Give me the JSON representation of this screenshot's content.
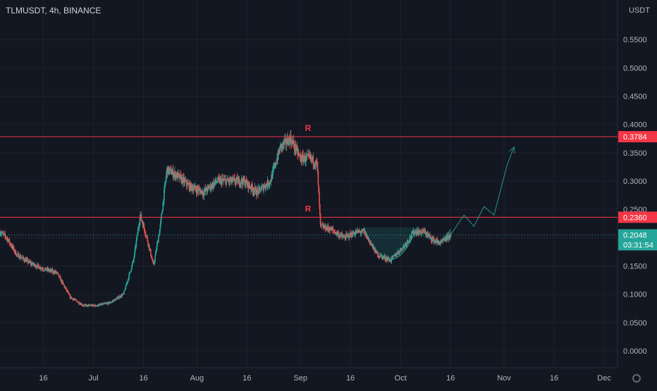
{
  "header": {
    "symbol_title": "TLMUSDT, 4h, BINANCE"
  },
  "colors": {
    "background": "#131722",
    "grid": "#1e222d",
    "up": "#26a69a",
    "down": "#ef5350",
    "resistance_line": "#f23645",
    "resistance_label_bg": "#f23645",
    "current_price_bg": "#26a69a",
    "projection": "#26a69a",
    "axis_text": "#b2b5be"
  },
  "chart_data": {
    "type": "candlestick",
    "symbol": "TLMUSDT",
    "timeframe": "4h",
    "exchange": "BINANCE",
    "y_unit": "USDT",
    "ylim": [
      -0.03,
      0.62
    ],
    "y_ticks": [
      "0.0000",
      "0.0500",
      "0.1000",
      "0.1500",
      "0.2000",
      "0.2500",
      "0.3000",
      "0.3500",
      "0.4000",
      "0.4500",
      "0.5000",
      "0.5500"
    ],
    "y_tick_values": [
      0.0,
      0.05,
      0.1,
      0.15,
      0.2,
      0.25,
      0.3,
      0.35,
      0.4,
      0.45,
      0.5,
      0.55
    ],
    "x_ticks": [
      "16",
      "Jul",
      "16",
      "Aug",
      "16",
      "Sep",
      "16",
      "Oct",
      "16",
      "Nov",
      "16",
      "Dec"
    ],
    "x_tick_dates": [
      "2021-06-16",
      "2021-07-01",
      "2021-07-16",
      "2021-08-01",
      "2021-08-16",
      "2021-09-01",
      "2021-09-16",
      "2021-10-01",
      "2021-10-16",
      "2021-11-01",
      "2021-11-16",
      "2021-12-01"
    ],
    "x_range": [
      "2021-06-03",
      "2021-12-05"
    ],
    "grid": true,
    "resistance_levels": [
      {
        "label": "R",
        "price": 0.3784,
        "price_label": "0.3784"
      },
      {
        "label": "R",
        "price": 0.236,
        "price_label": "0.2360"
      }
    ],
    "current_price": {
      "value": 0.2048,
      "value_label": "0.2048",
      "countdown": "03:31:54"
    },
    "price_path": [
      [
        "2021-06-03",
        0.21
      ],
      [
        "2021-06-05",
        0.2
      ],
      [
        "2021-06-08",
        0.17
      ],
      [
        "2021-06-12",
        0.155
      ],
      [
        "2021-06-16",
        0.145
      ],
      [
        "2021-06-20",
        0.138
      ],
      [
        "2021-06-24",
        0.095
      ],
      [
        "2021-06-28",
        0.08
      ],
      [
        "2021-07-02",
        0.08
      ],
      [
        "2021-07-06",
        0.085
      ],
      [
        "2021-07-10",
        0.1
      ],
      [
        "2021-07-13",
        0.16
      ],
      [
        "2021-07-15",
        0.24
      ],
      [
        "2021-07-17",
        0.2
      ],
      [
        "2021-07-19",
        0.15
      ],
      [
        "2021-07-21",
        0.22
      ],
      [
        "2021-07-23",
        0.32
      ],
      [
        "2021-07-26",
        0.31
      ],
      [
        "2021-07-30",
        0.29
      ],
      [
        "2021-08-03",
        0.28
      ],
      [
        "2021-08-07",
        0.3
      ],
      [
        "2021-08-11",
        0.3
      ],
      [
        "2021-08-15",
        0.3
      ],
      [
        "2021-08-19",
        0.28
      ],
      [
        "2021-08-23",
        0.3
      ],
      [
        "2021-08-26",
        0.36
      ],
      [
        "2021-08-29",
        0.375
      ],
      [
        "2021-09-01",
        0.34
      ],
      [
        "2021-09-04",
        0.34
      ],
      [
        "2021-09-06",
        0.33
      ],
      [
        "2021-09-07",
        0.22
      ],
      [
        "2021-09-10",
        0.215
      ],
      [
        "2021-09-14",
        0.2
      ],
      [
        "2021-09-18",
        0.21
      ],
      [
        "2021-09-20",
        0.21
      ],
      [
        "2021-09-24",
        0.17
      ],
      [
        "2021-09-28",
        0.16
      ],
      [
        "2021-10-02",
        0.185
      ],
      [
        "2021-10-05",
        0.21
      ],
      [
        "2021-10-08",
        0.21
      ],
      [
        "2021-10-11",
        0.195
      ],
      [
        "2021-10-13",
        0.19
      ],
      [
        "2021-10-16",
        0.2048
      ]
    ],
    "projection_path": [
      [
        "2021-10-16",
        0.2048
      ],
      [
        "2021-10-20",
        0.24
      ],
      [
        "2021-10-23",
        0.22
      ],
      [
        "2021-10-26",
        0.255
      ],
      [
        "2021-10-29",
        0.24
      ],
      [
        "2021-11-02",
        0.33
      ],
      [
        "2021-11-04",
        0.36
      ]
    ]
  }
}
